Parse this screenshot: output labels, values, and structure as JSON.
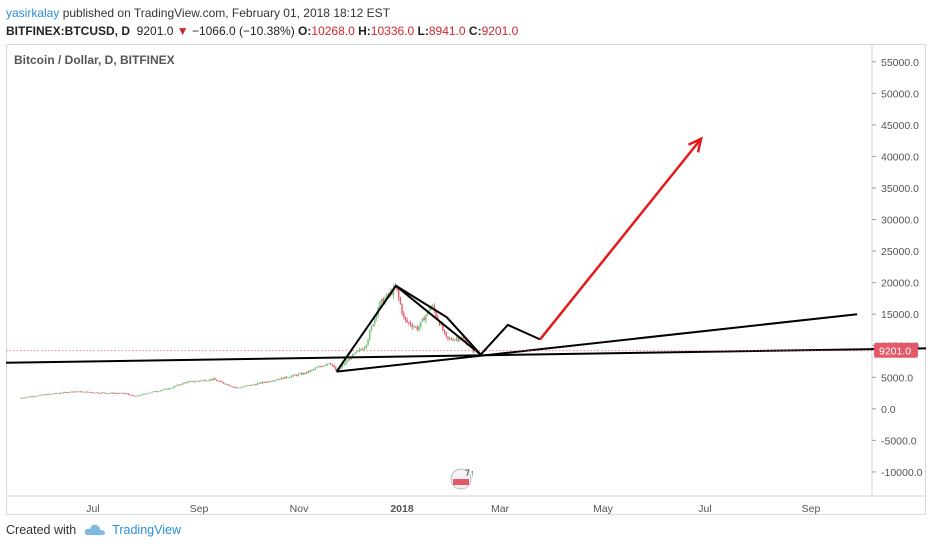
{
  "header": {
    "author": "yasirkalay",
    "published": "published on TradingView.com, February 01, 2018 18:12 EST",
    "symbol": "BITFINEX:BTCUSD, D",
    "last": "9201.0",
    "change": "−1066.0 (−10.38%)",
    "o_label": "O:",
    "o_value": "10268.0",
    "h_label": "H:",
    "h_value": "10336.0",
    "l_label": "L:",
    "l_value": "8941.0",
    "c_label": "C:",
    "c_value": "9201.0"
  },
  "footer": {
    "created_with": "Created with",
    "brand": "TradingView"
  },
  "event_badge": "7↑",
  "colors": {
    "up": "#6fbf73",
    "down": "#e3596a",
    "price_tag": "#e3596a",
    "arrow": "#e31a1c",
    "lines": "#000000"
  },
  "chart_data": {
    "type": "candlestick",
    "title": "Bitcoin / Dollar, D, BITFINEX",
    "x_ticks": [
      "Jul",
      "Sep",
      "Nov",
      "2018",
      "Mar",
      "May",
      "Jul",
      "Sep"
    ],
    "y_ticks": [
      55000,
      50000,
      45000,
      40000,
      35000,
      30000,
      25000,
      20000,
      15000,
      10000,
      5000,
      0,
      -5000,
      -10000
    ],
    "ylim": [
      -13500,
      57500
    ],
    "last_price_label": "9201.0",
    "last_price": 9201,
    "price_path": [
      {
        "date": "2017-05-10",
        "close": 1750
      },
      {
        "date": "2017-05-25",
        "close": 2300
      },
      {
        "date": "2017-06-10",
        "close": 2750
      },
      {
        "date": "2017-06-25",
        "close": 2550
      },
      {
        "date": "2017-07-10",
        "close": 2450
      },
      {
        "date": "2017-07-16",
        "close": 1950
      },
      {
        "date": "2017-07-25",
        "close": 2600
      },
      {
        "date": "2017-08-05",
        "close": 3200
      },
      {
        "date": "2017-08-15",
        "close": 4200
      },
      {
        "date": "2017-08-31",
        "close": 4700
      },
      {
        "date": "2017-09-14",
        "close": 3300
      },
      {
        "date": "2017-09-25",
        "close": 3900
      },
      {
        "date": "2017-10-10",
        "close": 4800
      },
      {
        "date": "2017-10-25",
        "close": 5700
      },
      {
        "date": "2017-11-08",
        "close": 7400
      },
      {
        "date": "2017-11-12",
        "close": 5900
      },
      {
        "date": "2017-11-20",
        "close": 8100
      },
      {
        "date": "2017-11-29",
        "close": 10000
      },
      {
        "date": "2017-12-07",
        "close": 16500
      },
      {
        "date": "2017-12-17",
        "close": 19200
      },
      {
        "date": "2017-12-22",
        "close": 14000
      },
      {
        "date": "2017-12-30",
        "close": 12700
      },
      {
        "date": "2018-01-07",
        "close": 16500
      },
      {
        "date": "2018-01-16",
        "close": 11000
      },
      {
        "date": "2018-01-25",
        "close": 11200
      },
      {
        "date": "2018-02-01",
        "close": 9201
      }
    ],
    "drawings": [
      {
        "name": "support-line",
        "points": [
          {
            "date": "2017-05-01",
            "price": 7300
          },
          {
            "date": "2018-10-31",
            "price": 9600
          }
        ]
      },
      {
        "name": "rising-trendline",
        "points": [
          {
            "date": "2017-11-12",
            "price": 5900
          },
          {
            "date": "2018-09-15",
            "price": 15000
          }
        ]
      },
      {
        "name": "projection-zigzag",
        "points": [
          {
            "date": "2017-11-12",
            "price": 5900
          },
          {
            "date": "2017-12-17",
            "price": 19500
          },
          {
            "date": "2018-02-05",
            "price": 8600
          },
          {
            "date": "2018-02-21",
            "price": 13300
          },
          {
            "date": "2018-03-12",
            "price": 11000
          }
        ]
      },
      {
        "name": "target-arrow",
        "points": [
          {
            "date": "2018-03-12",
            "price": 11000
          },
          {
            "date": "2018-06-15",
            "price": 42800
          }
        ]
      }
    ]
  }
}
